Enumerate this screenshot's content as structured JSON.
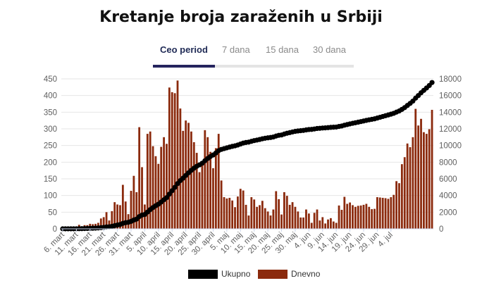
{
  "title": "Kretanje broja zaraženih u Srbiji",
  "tabs": [
    {
      "label": "Ceo period",
      "active": true
    },
    {
      "label": "7 dana",
      "active": false
    },
    {
      "label": "15 dana",
      "active": false
    },
    {
      "label": "30 dana",
      "active": false
    }
  ],
  "colors": {
    "daily": "#8b2a0d",
    "total": "#000000",
    "tab_active": "#25245e",
    "tab_track": "#e4e4e4",
    "grid": "#e6e6e6"
  },
  "legend": {
    "total_label": "Ukupno",
    "daily_label": "Dnevno",
    "position": "bottom-center"
  },
  "chart_data": {
    "type": "bar+line",
    "title": "Kretanje broja zaraženih u Srbiji",
    "x_tick_labels": [
      "6. mart",
      "11. mart",
      "16. mart",
      "21. mart",
      "26. mart",
      "31. mart",
      "5. april",
      "10. april",
      "15. april",
      "20. april",
      "25. april",
      "30. april",
      "5. maj",
      "10. maj",
      "15. maj",
      "20. maj",
      "25. maj",
      "30. maj",
      "4. jun",
      "9. jun",
      "14. jun",
      "19. jun",
      "24. jun",
      "29. jun",
      "4. jul"
    ],
    "x_start": "6. mart",
    "x_end": "8. jul",
    "left_axis": {
      "series": "Dnevno",
      "ylim": [
        0,
        450
      ],
      "ticks": [
        0,
        50,
        100,
        150,
        200,
        250,
        300,
        350,
        400,
        450
      ]
    },
    "right_axis": {
      "series": "Ukupno",
      "ylim": [
        0,
        18000
      ],
      "ticks": [
        0,
        2000,
        4000,
        6000,
        8000,
        10000,
        12000,
        14000,
        16000,
        18000
      ]
    },
    "grid": true,
    "series": [
      {
        "name": "Dnevno",
        "kind": "bar",
        "axis": "left",
        "values": [
          1,
          0,
          0,
          0,
          1,
          2,
          12,
          5,
          11,
          11,
          15,
          14,
          15,
          18,
          31,
          35,
          50,
          25,
          53,
          80,
          73,
          71,
          132,
          82,
          44,
          114,
          159,
          110,
          305,
          185,
          73,
          285,
          292,
          248,
          218,
          195,
          246,
          275,
          255,
          424,
          410,
          407,
          445,
          361,
          294,
          325,
          318,
          292,
          260,
          228,
          170,
          201,
          296,
          275,
          231,
          182,
          242,
          285,
          145,
          95,
          91,
          93,
          85,
          65,
          97,
          120,
          115,
          72,
          40,
          95,
          88,
          66,
          71,
          84,
          62,
          52,
          40,
          58,
          113,
          89,
          43,
          110,
          99,
          72,
          80,
          66,
          52,
          34,
          34,
          58,
          46,
          18,
          48,
          58,
          25,
          35,
          16,
          28,
          32,
          22,
          18,
          70,
          57,
          96,
          75,
          79,
          71,
          66,
          69,
          70,
          72,
          75,
          66,
          59,
          60,
          95,
          94,
          93,
          92,
          90,
          95,
          102,
          143,
          137,
          194,
          215,
          256,
          245,
          275,
          360,
          310,
          330,
          290,
          285,
          299,
          357
        ]
      },
      {
        "name": "Ukupno",
        "kind": "line",
        "axis": "right",
        "values": [
          1,
          1,
          1,
          1,
          2,
          4,
          16,
          21,
          32,
          43,
          58,
          72,
          87,
          105,
          136,
          171,
          221,
          246,
          299,
          379,
          452,
          523,
          655,
          737,
          781,
          895,
          1054,
          1164,
          1469,
          1654,
          1727,
          2012,
          2304,
          2552,
          2770,
          2965,
          3211,
          3486,
          3741,
          4165,
          4575,
          4982,
          5427,
          5788,
          6082,
          6407,
          6725,
          7017,
          7277,
          7505,
          7675,
          7876,
          8172,
          8447,
          8678,
          8860,
          9102,
          9387,
          9532,
          9627,
          9718,
          9811,
          9896,
          9961,
          10058,
          10178,
          10293,
          10365,
          10405,
          10500,
          10588,
          10654,
          10725,
          10809,
          10871,
          10923,
          10963,
          11021,
          11134,
          11223,
          11266,
          11376,
          11475,
          11547,
          11627,
          11693,
          11745,
          11779,
          11813,
          11871,
          11917,
          11935,
          11983,
          12041,
          12066,
          12101,
          12117,
          12145,
          12177,
          12199,
          12217,
          12287,
          12344,
          12440,
          12515,
          12594,
          12665,
          12731,
          12800,
          12870,
          12942,
          13017,
          13083,
          13142,
          13202,
          13297,
          13391,
          13484,
          13576,
          13666,
          13761,
          13863,
          14006,
          14143,
          14337,
          14552,
          14808,
          15053,
          15328,
          15688,
          15998,
          16328,
          16618,
          16903,
          17202,
          17559
        ]
      }
    ]
  }
}
